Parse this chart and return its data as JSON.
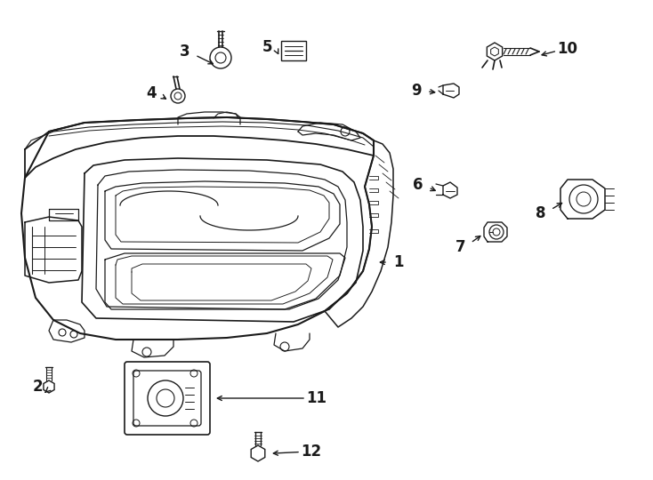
{
  "bg_color": "#ffffff",
  "line_color": "#1a1a1a",
  "figsize": [
    7.34,
    5.4
  ],
  "dpi": 100
}
